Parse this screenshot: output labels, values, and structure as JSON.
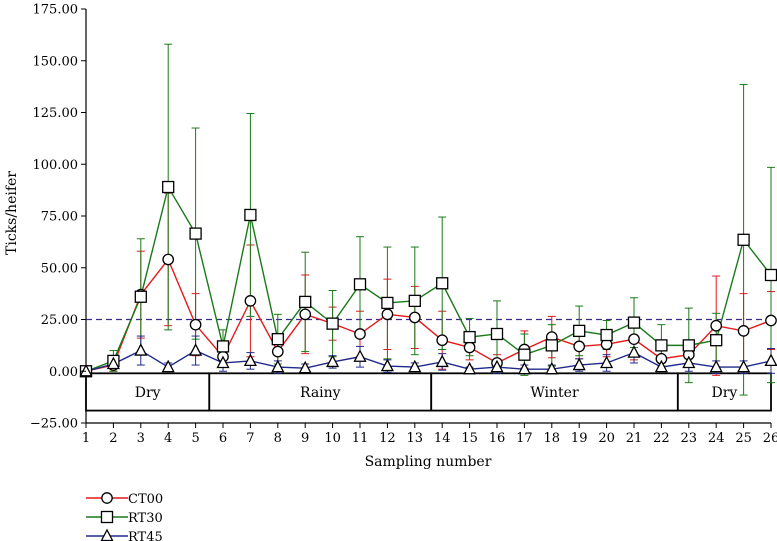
{
  "chart_data": {
    "type": "line",
    "title": "",
    "xlabel": "Sampling number",
    "ylabel": "Ticks/heifer",
    "ylim": [
      -25,
      175
    ],
    "yticks": [
      -25,
      0,
      25,
      50,
      75,
      100,
      125,
      150,
      175
    ],
    "ytick_labels": [
      "−25.00",
      "0.00",
      "25.00",
      "50.00",
      "75.00",
      "100.00",
      "125.00",
      "150.00",
      "175.00"
    ],
    "x": [
      1,
      2,
      3,
      4,
      5,
      6,
      7,
      8,
      9,
      10,
      11,
      12,
      13,
      14,
      15,
      16,
      17,
      18,
      19,
      20,
      21,
      22,
      23,
      24,
      25,
      26
    ],
    "xtick_labels": [
      "1",
      "2",
      "3",
      "4",
      "5",
      "6",
      "7",
      "8",
      "9",
      "10",
      "11",
      "12",
      "13",
      "14",
      "15",
      "16",
      "17",
      "18",
      "19",
      "20",
      "21",
      "22",
      "23",
      "24",
      "25",
      "26"
    ],
    "reference_line": {
      "y": 25,
      "color": "#3a2a8a",
      "style": "dashed"
    },
    "seasons": [
      {
        "label": "Dry",
        "from": 1,
        "to": 5.5
      },
      {
        "label": "Rainy",
        "from": 5.5,
        "to": 13.6
      },
      {
        "label": "Winter",
        "from": 13.6,
        "to": 22.6
      },
      {
        "label": "Dry",
        "from": 22.6,
        "to": 26
      }
    ],
    "season_band": {
      "top": -1,
      "bottom": -19
    },
    "series": [
      {
        "name": "CT00",
        "color": "#e31a1c",
        "marker": "circle",
        "values": [
          0,
          3,
          37,
          54,
          22.5,
          7,
          34,
          9.5,
          27.5,
          23,
          18,
          27.5,
          26,
          15,
          11.5,
          4,
          10.5,
          16.5,
          12,
          13,
          15.5,
          6,
          8,
          22,
          19.5,
          24.5
        ],
        "errors": [
          0,
          3,
          21,
          32,
          15,
          4,
          27,
          8,
          19,
          8,
          11,
          17,
          15,
          14,
          6,
          4,
          9,
          10,
          6,
          6,
          10,
          5,
          6,
          24,
          18,
          14
        ]
      },
      {
        "name": "RT30",
        "color": "#1a7a1a",
        "marker": "square",
        "values": [
          0,
          5,
          36,
          89,
          66.5,
          12,
          75.5,
          15.5,
          33.5,
          23,
          42,
          33,
          34,
          42.5,
          16.5,
          18,
          8,
          12.5,
          19.5,
          17.5,
          23.5,
          12.5,
          12.5,
          15,
          63.5,
          46.5
        ],
        "errors": [
          0,
          5,
          28,
          69,
          51,
          8,
          49,
          12,
          24,
          16,
          23,
          27,
          26,
          32,
          9,
          16,
          10,
          10,
          12,
          7,
          12,
          10,
          18,
          13,
          75,
          52
        ]
      },
      {
        "name": "RT45",
        "color": "#1f2a8a",
        "marker": "triangle",
        "values": [
          0,
          3.5,
          10,
          2,
          10,
          4,
          5,
          2,
          1.5,
          4.5,
          7,
          2.5,
          2,
          4.5,
          1,
          2,
          1,
          1,
          3,
          4,
          9,
          2,
          4,
          2,
          2,
          5
        ],
        "errors": [
          0,
          2,
          7,
          2,
          7,
          4,
          4,
          3,
          2,
          3,
          5,
          3,
          2,
          4,
          1,
          3,
          2,
          2,
          3,
          4,
          5,
          2,
          4,
          3,
          3,
          6
        ]
      }
    ],
    "legend_position": "bottom-left"
  }
}
